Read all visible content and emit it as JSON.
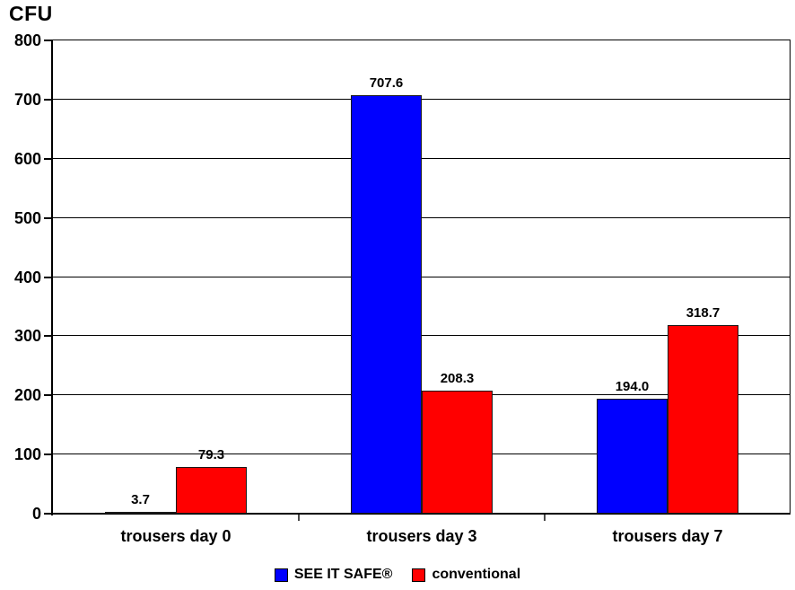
{
  "chart_data": {
    "type": "bar",
    "title": "CFU",
    "ylabel": "CFU",
    "categories": [
      "trousers day 0",
      "trousers day 3",
      "trousers day 7"
    ],
    "series": [
      {
        "name": "SEE IT SAFE®",
        "color": "#0000FF",
        "values": [
          3.7,
          707.6,
          194.0
        ],
        "value_labels": [
          "3.7",
          "707.6",
          "194.0"
        ]
      },
      {
        "name": "conventional",
        "color": "#FF0000",
        "values": [
          79.3,
          208.3,
          318.7
        ],
        "value_labels": [
          "79.3",
          "208.3",
          "318.7"
        ]
      }
    ],
    "ylim": [
      0,
      800
    ],
    "ytick_step": 100,
    "grid": true,
    "legend_position": "bottom"
  }
}
